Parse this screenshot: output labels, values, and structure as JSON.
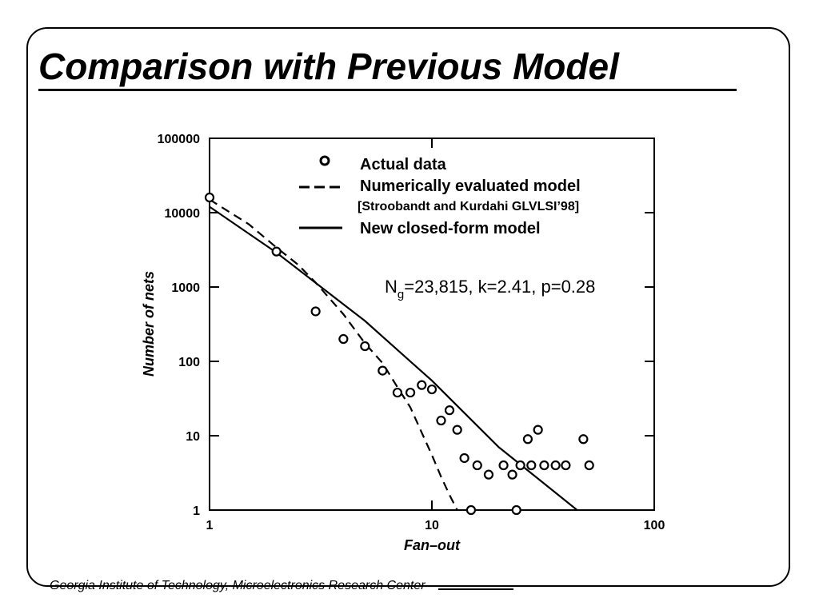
{
  "slide": {
    "title": "Comparison with Previous Model",
    "footer": "Georgia Institute of Technology, Microelectronics Research Center"
  },
  "chart_data": {
    "type": "scatter",
    "title": "",
    "xlabel": "Fan–out",
    "ylabel": "Number of nets",
    "xscale": "log",
    "yscale": "log",
    "xlim": [
      1,
      100
    ],
    "ylim": [
      1,
      100000
    ],
    "x_ticks": [
      "1",
      "10",
      "100"
    ],
    "y_ticks": [
      "1",
      "10",
      "100",
      "1000",
      "10000",
      "100000"
    ],
    "grid": false,
    "legend_position": "top-right",
    "annotation": {
      "prefix": "N",
      "subscript": "g",
      "text": "=23,815, k=2.41, p=0.28"
    },
    "series": [
      {
        "name": "Actual data",
        "kind": "points",
        "marker": "open-circle",
        "points": [
          [
            1,
            16000
          ],
          [
            2,
            3000
          ],
          [
            3,
            470
          ],
          [
            4,
            200
          ],
          [
            5,
            160
          ],
          [
            6,
            75
          ],
          [
            7,
            38
          ],
          [
            8,
            38
          ],
          [
            9,
            48
          ],
          [
            10,
            42
          ],
          [
            11,
            16
          ],
          [
            12,
            22
          ],
          [
            13,
            12
          ],
          [
            14,
            5
          ],
          [
            16,
            4
          ],
          [
            18,
            3
          ],
          [
            21,
            4
          ],
          [
            23,
            3
          ],
          [
            24,
            1
          ],
          [
            25,
            4
          ],
          [
            27,
            9
          ],
          [
            28,
            4
          ],
          [
            30,
            12
          ],
          [
            32,
            4
          ],
          [
            36,
            4
          ],
          [
            40,
            4
          ],
          [
            48,
            9
          ],
          [
            51,
            4
          ],
          [
            15,
            1
          ]
        ]
      },
      {
        "name": "Numerically evaluated model",
        "subtitle": "[Stroobandt and Kurdahi GLVLSI’98]",
        "kind": "line",
        "style": "dashed",
        "points": [
          [
            1,
            15000
          ],
          [
            1.5,
            7000
          ],
          [
            2,
            3400
          ],
          [
            2.5,
            2000
          ],
          [
            3,
            1150
          ],
          [
            4,
            430
          ],
          [
            5,
            175
          ],
          [
            6,
            95
          ],
          [
            7,
            45
          ],
          [
            8,
            24
          ],
          [
            9,
            11
          ],
          [
            10,
            5.5
          ],
          [
            11,
            2.8
          ],
          [
            12,
            1.6
          ],
          [
            13,
            1
          ]
        ]
      },
      {
        "name": "New closed-form model",
        "kind": "line",
        "style": "solid",
        "points": [
          [
            1,
            12000
          ],
          [
            2,
            2900
          ],
          [
            5,
            350
          ],
          [
            10,
            55
          ],
          [
            20,
            7
          ],
          [
            45,
            1
          ]
        ]
      }
    ]
  }
}
